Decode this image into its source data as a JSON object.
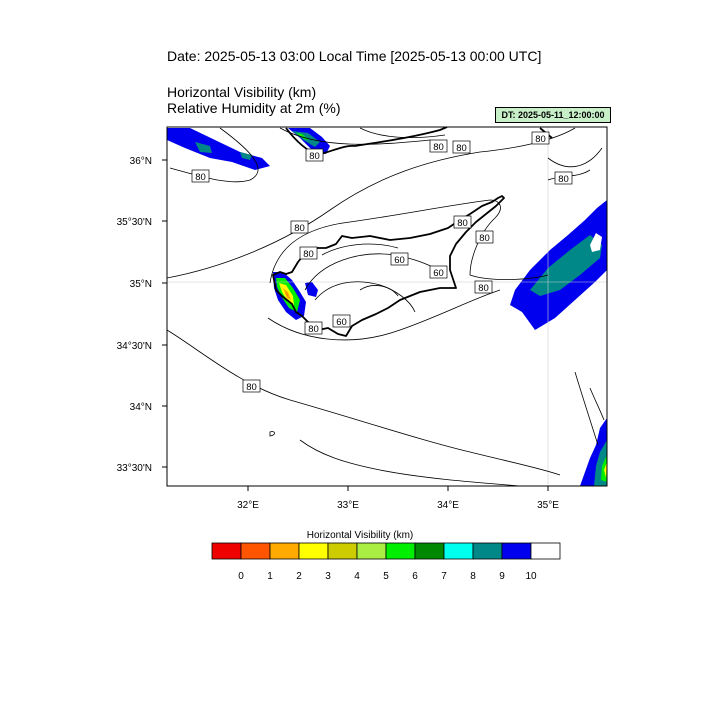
{
  "header": {
    "date_title": "Date: 2025-05-13  03:00 Local Time [2025-05-13  00:00 UTC]",
    "variable_line_1": "Horizontal Visibility   (km)",
    "variable_line_2": "Relative Humidity at 2m   (%)",
    "dt_badge": "DT: 2025-05-11_12:00:00",
    "dt_badge_color": "#c8f0c8"
  },
  "map": {
    "region": "Cyprus and Eastern Mediterranean",
    "lon_ticks": [
      "32°E",
      "33°E",
      "34°E",
      "35°E"
    ],
    "lat_ticks": [
      "36°N",
      "35°30'N",
      "35°N",
      "34°30'N",
      "34°N",
      "33°30'N"
    ],
    "humidity_contour_labels": [
      "80",
      "80",
      "80",
      "80",
      "80",
      "80",
      "80",
      "80",
      "80",
      "60",
      "60",
      "60",
      "80",
      "80",
      "80",
      "80"
    ]
  },
  "legend": {
    "title": "Horizontal Visibility  (km)",
    "colors": [
      "#ee0000",
      "#ff5500",
      "#ffaa00",
      "#ffff00",
      "#cccc00",
      "#aaee44",
      "#00ee00",
      "#008800",
      "#00ffee",
      "#008888",
      "#0000ee",
      "#ffffff"
    ],
    "labels": [
      "0",
      "1",
      "2",
      "3",
      "4",
      "5",
      "6",
      "7",
      "8",
      "9",
      "10"
    ]
  }
}
